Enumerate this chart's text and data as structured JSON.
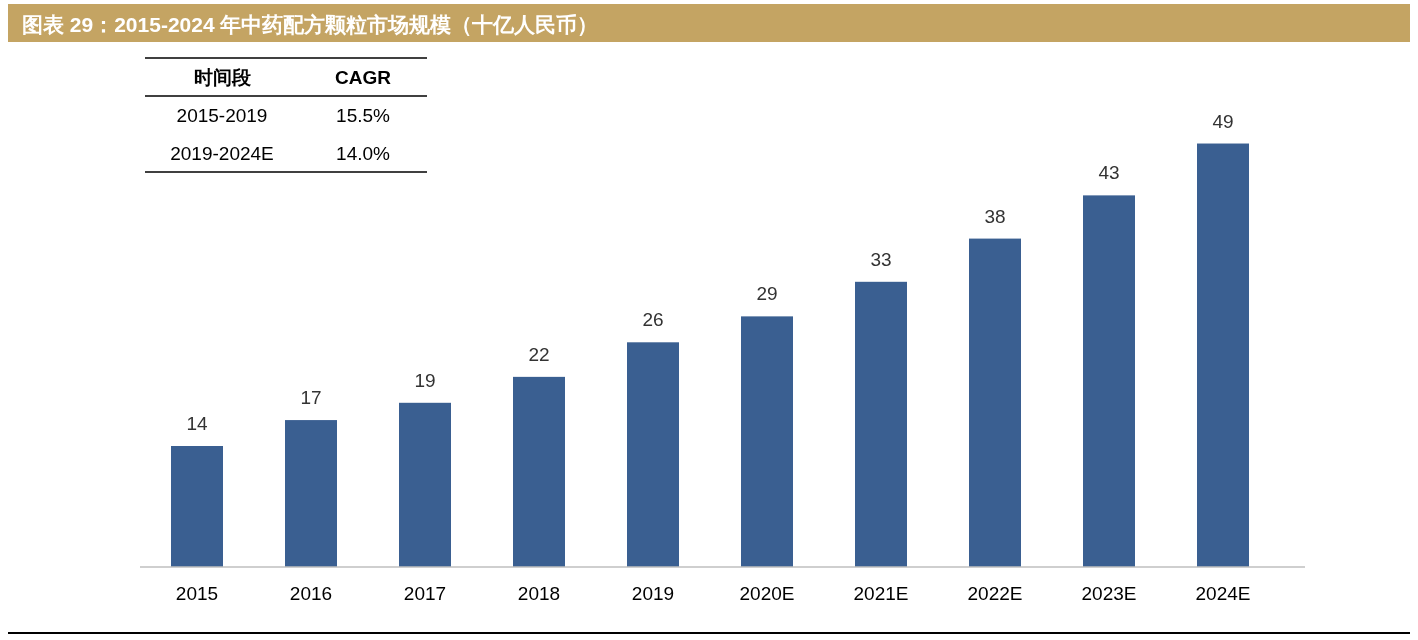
{
  "chart_data": {
    "type": "bar",
    "title": "图表 29：2015-2024 年中药配方颗粒市场规模（十亿人民币）",
    "categories": [
      "2015",
      "2016",
      "2017",
      "2018",
      "2019",
      "2020E",
      "2021E",
      "2022E",
      "2023E",
      "2024E"
    ],
    "values": [
      14,
      17,
      19,
      22,
      26,
      29,
      33,
      38,
      43,
      49
    ],
    "color": "#3a5f91",
    "data_labels": true,
    "annotations": [
      "时间段",
      "CAGR",
      "2015-2019",
      "15.5%",
      "2019-2024E",
      "14.0%"
    ]
  }
}
